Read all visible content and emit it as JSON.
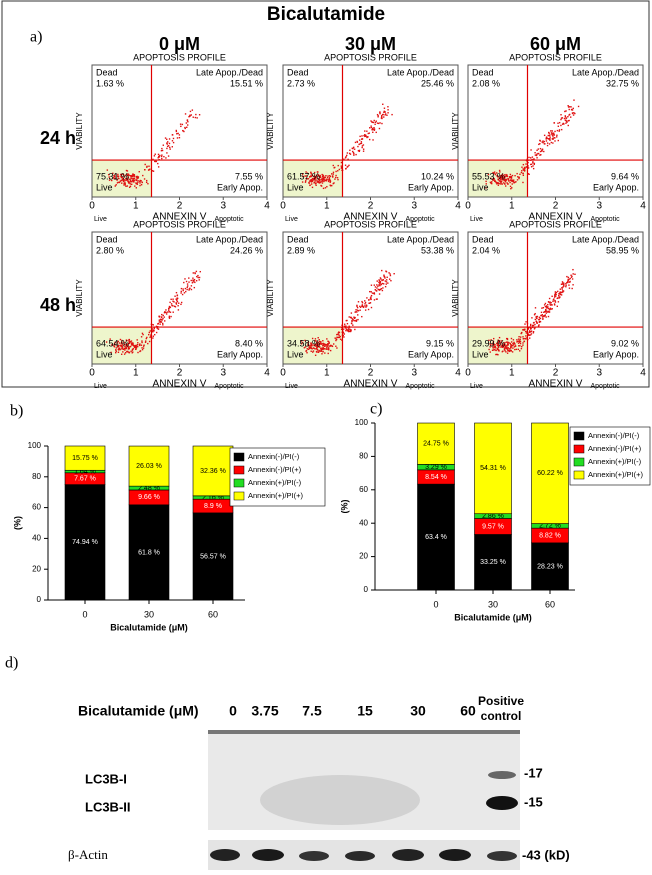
{
  "panel_a": {
    "label": "a)",
    "title": "Bicalutamide",
    "columns": [
      "0 μM",
      "30 μM",
      "60 μM"
    ],
    "rows": [
      "24 h",
      "48 h"
    ],
    "plot_title": "APOPTOSIS PROFILE",
    "y_axis_label": "VIABILITY",
    "x_axis_label": "ANNEXIN V",
    "x_ticks": [
      0,
      1,
      2,
      3,
      4
    ],
    "left_note": "Live",
    "right_note": "Apoptotic",
    "quadrants": {
      "dead": "Dead",
      "late": "Late Apop./Dead",
      "early": "Early Apop.",
      "live": "Live"
    },
    "plots": [
      {
        "dead": "1.63 %",
        "late": "15.51 %",
        "early": "7.55 %",
        "live": "75.31 %"
      },
      {
        "dead": "2.73 %",
        "late": "25.46 %",
        "early": "10.24 %",
        "live": "61.57 %"
      },
      {
        "dead": "2.08 %",
        "late": "32.75 %",
        "early": "9.64 %",
        "live": "55.53 %"
      },
      {
        "dead": "2.80 %",
        "late": "24.26 %",
        "early": "8.40 %",
        "live": "64.54 %"
      },
      {
        "dead": "2.89 %",
        "late": "53.38 %",
        "early": "9.15 %",
        "live": "34.58 %"
      },
      {
        "dead": "2.04 %",
        "late": "58.95 %",
        "early": "9.02 %",
        "live": "29.99 %"
      }
    ]
  },
  "chart_data": [
    {
      "type": "stacked_bar",
      "label": "b)",
      "x_label": "Bicalutamide (μM)",
      "y_label": "(%)",
      "categories": [
        "0",
        "30",
        "60"
      ],
      "ylim": [
        0,
        100
      ],
      "yticks": [
        0,
        20,
        40,
        60,
        80,
        100
      ],
      "legend": "right",
      "series": [
        {
          "name": "Annexin(-)/PI(-)",
          "color": "#000000",
          "values": [
            74.94,
            61.8,
            56.57
          ],
          "value_labels": [
            "74.94 %",
            "61.8 %",
            "56.57 %"
          ]
        },
        {
          "name": "Annexin(-)/PI(+)",
          "color": "#ff0000",
          "values": [
            7.67,
            9.66,
            8.9
          ],
          "value_labels": [
            "7.67 %",
            "9.66 %",
            "8.9 %"
          ]
        },
        {
          "name": "Annexin(+)/PI(-)",
          "color": "#22dd22",
          "values": [
            1.64,
            2.48,
            2.16
          ],
          "value_labels": [
            "1.64 %",
            "2.48 %",
            "2.16 %"
          ]
        },
        {
          "name": "Annexin(+)/PI(+)",
          "color": "#ffff00",
          "values": [
            15.75,
            26.03,
            32.36
          ],
          "value_labels": [
            "15.75 %",
            "26.03 %",
            "32.36 %"
          ]
        }
      ]
    },
    {
      "type": "stacked_bar",
      "label": "c)",
      "x_label": "Bicalutamide (μM)",
      "y_label": "(%)",
      "categories": [
        "0",
        "30",
        "60"
      ],
      "ylim": [
        0,
        100
      ],
      "yticks": [
        0,
        20,
        40,
        60,
        80,
        100
      ],
      "legend": "right",
      "series": [
        {
          "name": "Annexin(-)/PI(-)",
          "color": "#000000",
          "values": [
            63.4,
            33.25,
            28.23
          ],
          "value_labels": [
            "63.4 %",
            "33.25 %",
            "28.23 %"
          ]
        },
        {
          "name": "Annexin(-)/PI(+)",
          "color": "#ff0000",
          "values": [
            8.54,
            9.57,
            8.82
          ],
          "value_labels": [
            "8.54 %",
            "9.57 %",
            "8.82 %"
          ]
        },
        {
          "name": "Annexin(+)/PI(-)",
          "color": "#22dd22",
          "values": [
            3.29,
            2.86,
            2.72
          ],
          "value_labels": [
            "3.29 %",
            "2.86 %",
            "2.72 %"
          ]
        },
        {
          "name": "Annexin(+)/PI(+)",
          "color": "#ffff00",
          "values": [
            24.75,
            54.31,
            60.22
          ],
          "value_labels": [
            "24.75 %",
            "54.31 %",
            "60.22 %"
          ]
        }
      ]
    }
  ],
  "panel_d": {
    "label": "d)",
    "header": "Bicalutamide (μM)",
    "lanes": [
      0,
      3.75,
      7.5,
      15,
      30,
      60
    ],
    "control_lane": "Positive control",
    "bands": [
      "LC3B-I",
      "LC3B-II",
      "β-Actin"
    ],
    "markers": [
      "-17",
      "-15",
      "-43 (kD)"
    ]
  }
}
